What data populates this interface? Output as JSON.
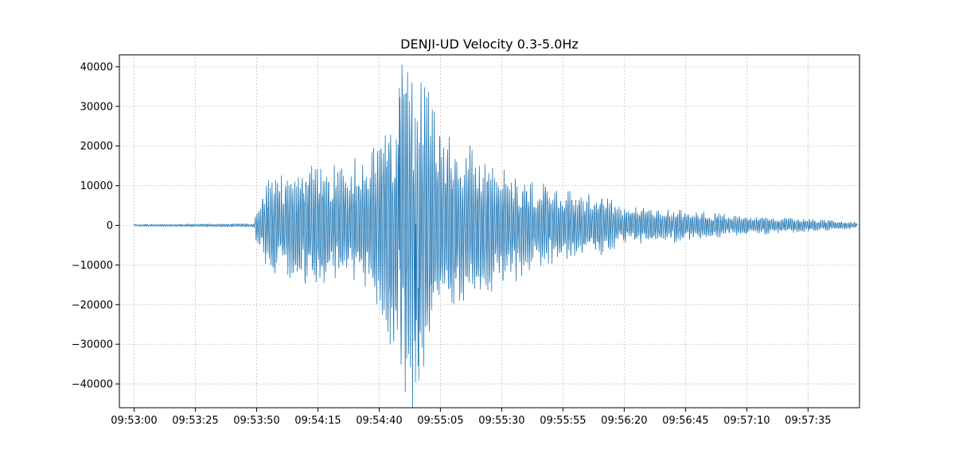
{
  "chart_data": {
    "type": "line",
    "title": "DENJI-UD Velocity 0.3-5.0Hz",
    "xlabel": "",
    "ylabel": "",
    "grid": true,
    "xlim_seconds": [
      -6,
      296
    ],
    "ylim": [
      -46000,
      43000
    ],
    "x_ticks": [
      "09:53:00",
      "09:53:25",
      "09:53:50",
      "09:54:15",
      "09:54:40",
      "09:55:05",
      "09:55:30",
      "09:55:55",
      "09:56:20",
      "09:56:45",
      "09:57:10",
      "09:57:35"
    ],
    "x_tick_seconds": [
      0,
      25,
      50,
      75,
      100,
      125,
      150,
      175,
      200,
      225,
      250,
      275
    ],
    "y_ticks": [
      40000,
      30000,
      20000,
      10000,
      0,
      -10000,
      -20000,
      -30000,
      -40000
    ],
    "y_tick_labels": [
      "40000",
      "30000",
      "20000",
      "10000",
      "0",
      "−10000",
      "−20000",
      "−30000",
      "−40000"
    ],
    "series": [
      {
        "name": "DENJI-UD velocity",
        "color": "#1f77b4",
        "x_start": "09:53:00",
        "x_end": "09:57:55",
        "envelope_points": [
          {
            "t": 0,
            "amp": 300
          },
          {
            "t": 49,
            "amp": 500
          },
          {
            "t": 50,
            "amp": 5000
          },
          {
            "t": 55,
            "amp": 12000
          },
          {
            "t": 65,
            "amp": 14000
          },
          {
            "t": 75,
            "amp": 17000
          },
          {
            "t": 85,
            "amp": 15000
          },
          {
            "t": 95,
            "amp": 16000
          },
          {
            "t": 105,
            "amp": 30000
          },
          {
            "t": 112,
            "amp": 42000
          },
          {
            "t": 118,
            "amp": 39000
          },
          {
            "t": 125,
            "amp": 27000
          },
          {
            "t": 135,
            "amp": 21000
          },
          {
            "t": 145,
            "amp": 17000
          },
          {
            "t": 160,
            "amp": 13000
          },
          {
            "t": 175,
            "amp": 9000
          },
          {
            "t": 190,
            "amp": 8000
          },
          {
            "t": 200,
            "amp": 5000
          },
          {
            "t": 225,
            "amp": 4000
          },
          {
            "t": 250,
            "amp": 2500
          },
          {
            "t": 275,
            "amp": 1800
          },
          {
            "t": 295,
            "amp": 800
          }
        ],
        "peak_max": 38500,
        "peak_min": -42000
      }
    ]
  }
}
